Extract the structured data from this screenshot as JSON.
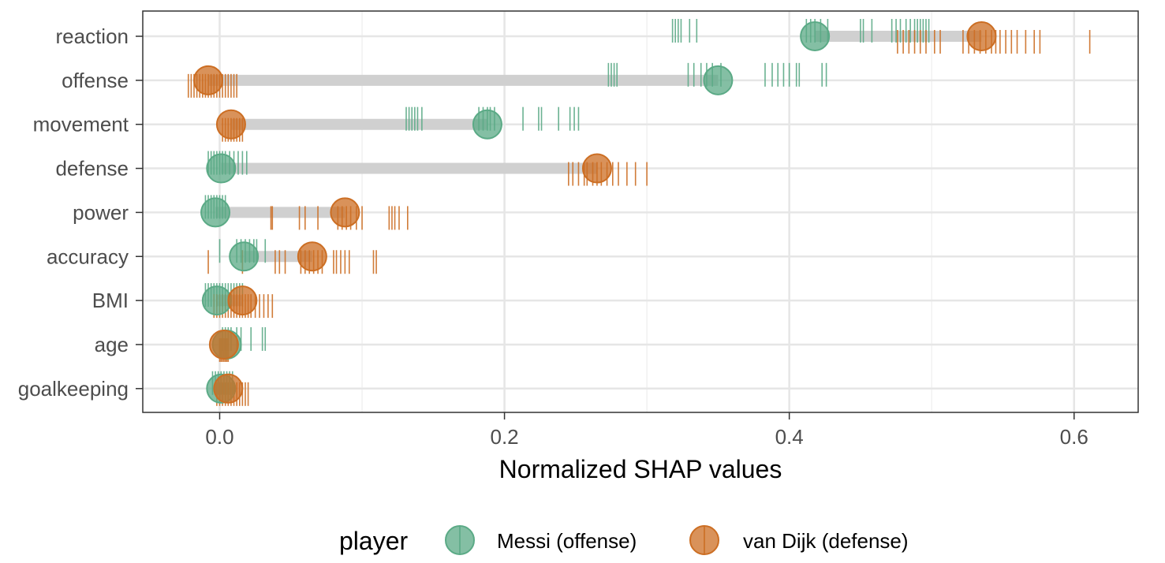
{
  "chart_data": {
    "type": "dumbbell-rug",
    "xlabel": "Normalized SHAP values",
    "xlim": [
      -0.054,
      0.645
    ],
    "xticks": [
      0.0,
      0.2,
      0.4,
      0.6
    ],
    "xtick_labels": [
      "0.0",
      "0.2",
      "0.4",
      "0.6"
    ],
    "grid": true,
    "legend_position": "bottom",
    "legend_title": "player",
    "categories": [
      "reaction",
      "offense",
      "movement",
      "defense",
      "power",
      "accuracy",
      "BMI",
      "age",
      "goalkeeping"
    ],
    "series": [
      {
        "name": "Messi (offense)",
        "color": "#5BAA86",
        "means": [
          0.418,
          0.35,
          0.188,
          0.001,
          -0.003,
          0.017,
          -0.002,
          0.005,
          0.001
        ],
        "rug": [
          [
            0.318,
            0.32,
            0.322,
            0.324,
            0.33,
            0.335,
            0.412,
            0.415,
            0.418,
            0.422,
            0.427,
            0.45,
            0.452,
            0.458,
            0.472,
            0.475,
            0.478,
            0.482,
            0.485,
            0.488,
            0.49,
            0.492,
            0.494,
            0.496,
            0.498
          ],
          [
            0.273,
            0.275,
            0.277,
            0.279,
            0.329,
            0.333,
            0.338,
            0.342,
            0.346,
            0.352,
            0.383,
            0.388,
            0.392,
            0.396,
            0.4,
            0.405,
            0.407,
            0.423,
            0.426
          ],
          [
            0.131,
            0.133,
            0.135,
            0.137,
            0.139,
            0.142,
            0.182,
            0.185,
            0.188,
            0.19,
            0.193,
            0.213,
            0.224,
            0.226,
            0.238,
            0.246,
            0.249,
            0.252
          ],
          [
            -0.008,
            -0.006,
            -0.004,
            -0.002,
            0.0,
            0.002,
            0.004,
            0.007,
            0.01,
            0.013,
            0.016,
            0.019
          ],
          [
            -0.01,
            -0.008,
            -0.006,
            -0.004,
            -0.002,
            0.0,
            0.002,
            0.004
          ],
          [
            0.0,
            0.012,
            0.015,
            0.018,
            0.021,
            0.024,
            0.026,
            0.032
          ],
          [
            -0.01,
            -0.008,
            -0.006,
            -0.004,
            -0.002,
            0.0,
            0.002,
            0.004,
            0.006,
            0.008,
            0.01,
            0.012,
            0.014,
            0.016
          ],
          [
            0.002,
            0.004,
            0.006,
            0.008,
            0.012,
            0.015,
            0.022,
            0.03,
            0.032
          ],
          [
            -0.005,
            -0.003,
            -0.001,
            0.001,
            0.003,
            0.005,
            0.007,
            0.009
          ]
        ]
      },
      {
        "name": "van Dijk (defense)",
        "color": "#CC6E23",
        "means": [
          0.535,
          -0.008,
          0.008,
          0.265,
          0.088,
          0.065,
          0.016,
          0.003,
          0.006
        ],
        "rug": [
          [
            0.476,
            0.48,
            0.484,
            0.488,
            0.492,
            0.496,
            0.502,
            0.506,
            0.522,
            0.526,
            0.53,
            0.534,
            0.538,
            0.542,
            0.545,
            0.548,
            0.552,
            0.556,
            0.56,
            0.566,
            0.572,
            0.576,
            0.611
          ],
          [
            -0.022,
            -0.02,
            -0.018,
            -0.016,
            -0.014,
            -0.012,
            -0.01,
            -0.008,
            -0.006,
            -0.004,
            -0.002,
            0.0,
            0.002,
            0.004,
            0.006,
            0.008,
            0.01,
            0.012
          ],
          [
            0.002,
            0.004,
            0.006,
            0.008,
            0.01,
            0.012,
            0.014,
            0.016
          ],
          [
            0.245,
            0.248,
            0.252,
            0.256,
            0.258,
            0.262,
            0.265,
            0.268,
            0.272,
            0.276,
            0.28,
            0.286,
            0.292,
            0.3
          ],
          [
            0.036,
            0.037,
            0.056,
            0.06,
            0.069,
            0.083,
            0.086,
            0.089,
            0.092,
            0.096,
            0.1,
            0.119,
            0.121,
            0.123,
            0.126,
            0.132
          ],
          [
            -0.008,
            0.016,
            0.039,
            0.042,
            0.046,
            0.057,
            0.06,
            0.063,
            0.066,
            0.069,
            0.072,
            0.08,
            0.082,
            0.085,
            0.088,
            0.091,
            0.108,
            0.11
          ],
          [
            -0.004,
            -0.002,
            0.0,
            0.002,
            0.004,
            0.006,
            0.008,
            0.01,
            0.012,
            0.014,
            0.016,
            0.018,
            0.02,
            0.022,
            0.025,
            0.028,
            0.031,
            0.034,
            0.037
          ],
          [
            0.0,
            0.001,
            0.002,
            0.003,
            0.004,
            0.005,
            0.006
          ],
          [
            -0.002,
            0.0,
            0.002,
            0.004,
            0.006,
            0.008,
            0.01,
            0.012,
            0.014,
            0.016,
            0.018,
            0.02
          ]
        ]
      }
    ]
  }
}
